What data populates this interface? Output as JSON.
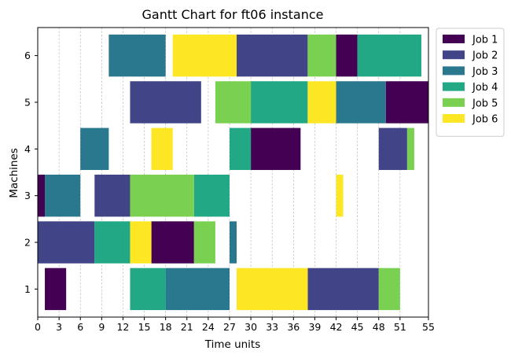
{
  "chart_data": {
    "type": "gantt",
    "title": "Gantt Chart for ft06 instance",
    "xlabel": "Time units",
    "ylabel": "Machines",
    "xlim": [
      0,
      55
    ],
    "ylim": [
      0.4,
      6.6
    ],
    "xticks": [
      0,
      3,
      6,
      9,
      12,
      15,
      18,
      21,
      24,
      27,
      30,
      33,
      36,
      39,
      42,
      45,
      48,
      51,
      55
    ],
    "yticks": [
      1,
      2,
      3,
      4,
      5,
      6
    ],
    "xgrid": true,
    "legend_position": "outside-top-right",
    "series": [
      {
        "name": "Job 1",
        "color": "#440154"
      },
      {
        "name": "Job 2",
        "color": "#414487"
      },
      {
        "name": "Job 3",
        "color": "#2a788e"
      },
      {
        "name": "Job 4",
        "color": "#22a884"
      },
      {
        "name": "Job 5",
        "color": "#7ad151"
      },
      {
        "name": "Job 6",
        "color": "#fde725"
      }
    ],
    "tasks": [
      {
        "job": "Job 1",
        "machine": 3,
        "start": 0,
        "end": 1
      },
      {
        "job": "Job 1",
        "machine": 1,
        "start": 1,
        "end": 4
      },
      {
        "job": "Job 1",
        "machine": 2,
        "start": 16,
        "end": 22
      },
      {
        "job": "Job 1",
        "machine": 4,
        "start": 30,
        "end": 37
      },
      {
        "job": "Job 1",
        "machine": 6,
        "start": 42,
        "end": 45
      },
      {
        "job": "Job 1",
        "machine": 5,
        "start": 49,
        "end": 55
      },
      {
        "job": "Job 2",
        "machine": 2,
        "start": 0,
        "end": 8
      },
      {
        "job": "Job 2",
        "machine": 3,
        "start": 8,
        "end": 13
      },
      {
        "job": "Job 2",
        "machine": 5,
        "start": 13,
        "end": 23
      },
      {
        "job": "Job 2",
        "machine": 6,
        "start": 28,
        "end": 38
      },
      {
        "job": "Job 2",
        "machine": 1,
        "start": 38,
        "end": 48
      },
      {
        "job": "Job 2",
        "machine": 4,
        "start": 48,
        "end": 52
      },
      {
        "job": "Job 3",
        "machine": 3,
        "start": 1,
        "end": 6
      },
      {
        "job": "Job 3",
        "machine": 4,
        "start": 6,
        "end": 10
      },
      {
        "job": "Job 3",
        "machine": 6,
        "start": 10,
        "end": 18
      },
      {
        "job": "Job 3",
        "machine": 1,
        "start": 18,
        "end": 27
      },
      {
        "job": "Job 3",
        "machine": 2,
        "start": 27,
        "end": 28
      },
      {
        "job": "Job 3",
        "machine": 5,
        "start": 42,
        "end": 49
      },
      {
        "job": "Job 4",
        "machine": 2,
        "start": 8,
        "end": 13
      },
      {
        "job": "Job 4",
        "machine": 1,
        "start": 13,
        "end": 18
      },
      {
        "job": "Job 4",
        "machine": 3,
        "start": 22,
        "end": 27
      },
      {
        "job": "Job 4",
        "machine": 4,
        "start": 27,
        "end": 30
      },
      {
        "job": "Job 4",
        "machine": 5,
        "start": 30,
        "end": 38
      },
      {
        "job": "Job 4",
        "machine": 6,
        "start": 45,
        "end": 54
      },
      {
        "job": "Job 5",
        "machine": 3,
        "start": 13,
        "end": 22
      },
      {
        "job": "Job 5",
        "machine": 2,
        "start": 22,
        "end": 25
      },
      {
        "job": "Job 5",
        "machine": 5,
        "start": 25,
        "end": 30
      },
      {
        "job": "Job 5",
        "machine": 6,
        "start": 38,
        "end": 42
      },
      {
        "job": "Job 5",
        "machine": 1,
        "start": 48,
        "end": 51
      },
      {
        "job": "Job 5",
        "machine": 4,
        "start": 52,
        "end": 53
      },
      {
        "job": "Job 6",
        "machine": 2,
        "start": 13,
        "end": 16
      },
      {
        "job": "Job 6",
        "machine": 4,
        "start": 16,
        "end": 19
      },
      {
        "job": "Job 6",
        "machine": 6,
        "start": 19,
        "end": 28
      },
      {
        "job": "Job 6",
        "machine": 1,
        "start": 28,
        "end": 38
      },
      {
        "job": "Job 6",
        "machine": 5,
        "start": 38,
        "end": 42
      },
      {
        "job": "Job 6",
        "machine": 3,
        "start": 42,
        "end": 43
      }
    ]
  }
}
